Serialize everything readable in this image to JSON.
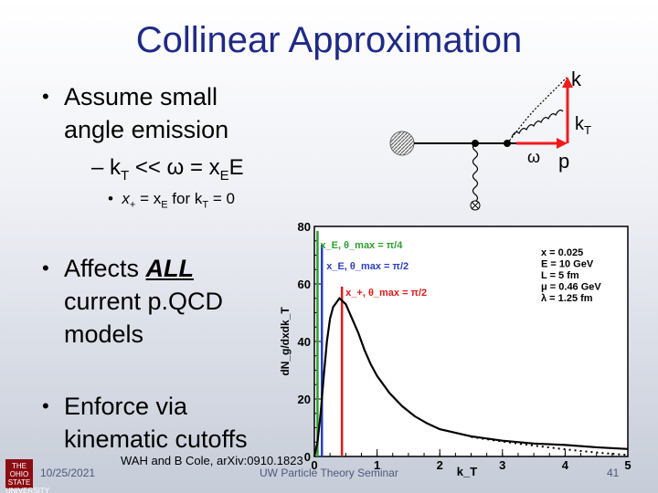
{
  "slide": {
    "title": "Collinear Approximation",
    "bullet1_line1": "Assume small",
    "bullet1_line2": "angle emission",
    "sub_prefix": "– k",
    "sub_sub": "T",
    "sub_mid": " << ω = x",
    "sub_sub2": "E",
    "sub_end": "E",
    "subsub_a": "x",
    "subsub_a_sub": "+",
    "subsub_b": " = x",
    "subsub_b_sub": "E",
    "subsub_c": " for k",
    "subsub_c_sub": "T",
    "subsub_d": " = 0",
    "bullet2_a": "Affects ",
    "bullet2_b": "ALL",
    "bullet2_line2": "current p.QCD",
    "bullet2_line3": "models",
    "bullet3_line1": "Enforce via",
    "bullet3_line2": "kinematic cutoffs"
  },
  "diagram": {
    "label_k": "k",
    "label_kt": "k",
    "label_kt_sub": "T",
    "label_omega": "ω",
    "label_p": "p"
  },
  "footer": {
    "citation": "WAH and B Cole, arXiv:0910.1823",
    "date": "10/25/2021",
    "center": "UW Particle Theory Seminar",
    "page": "41",
    "logo_text": "THE OHIO STATE UNIVERSITY"
  },
  "chart_data": {
    "type": "line",
    "ylabel": "dN_g/dxdk_T",
    "xlabel": "k_T",
    "xlim": [
      0,
      5
    ],
    "ylim": [
      0,
      80
    ],
    "xticks": [
      "0",
      "1",
      "2",
      "3",
      "4",
      "5"
    ],
    "yticks": [
      "0",
      "20",
      "40",
      "60",
      "80"
    ],
    "params": [
      "x = 0.025",
      "E = 10 GeV",
      "L = 5 fm",
      "μ = 0.46 GeV",
      "λ = 1.25 fm"
    ],
    "cutoffs": [
      {
        "label": "x_E, θ_max = π/4",
        "x": 0.05,
        "color": "#2e9e2e"
      },
      {
        "label": "x_E, θ_max = π/2",
        "x": 0.12,
        "color": "#2a3ec0"
      },
      {
        "label": "x_+, θ_max = π/2",
        "x": 0.44,
        "color": "#e01a1a"
      }
    ],
    "series": [
      {
        "style": "solid",
        "x": [
          0.0,
          0.05,
          0.1,
          0.15,
          0.2,
          0.25,
          0.3,
          0.4,
          0.5,
          0.6,
          0.7,
          0.8,
          0.9,
          1.0,
          1.2,
          1.4,
          1.6,
          1.8,
          2.0,
          2.5,
          3.0,
          3.5,
          4.0,
          4.5,
          5.0
        ],
        "y": [
          0,
          5,
          15,
          28,
          40,
          48,
          52,
          55,
          53,
          48,
          43,
          37,
          32,
          28,
          22,
          17.5,
          14,
          11.5,
          9.5,
          7,
          5.5,
          4.5,
          4,
          3.2,
          2.6
        ]
      },
      {
        "style": "dotted",
        "x": [
          2.5,
          3.0,
          3.5,
          3.8,
          4.0,
          4.3,
          4.6,
          5.0
        ],
        "y": [
          6.8,
          5.2,
          3.8,
          3.0,
          2.5,
          1.8,
          1.2,
          0.5
        ]
      }
    ]
  }
}
